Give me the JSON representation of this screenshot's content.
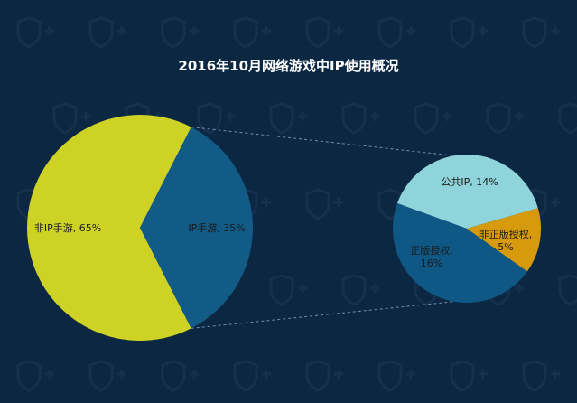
{
  "title": "2016年10月网络游戏中IP使用概况",
  "chart_data": [
    {
      "type": "pie",
      "slices": [
        {
          "label": "非IP手游",
          "value": 65,
          "display": "非IP手游, 65%",
          "color": "#cdd225"
        },
        {
          "label": "IP手游",
          "value": 35,
          "display": "IP手游, 35%",
          "color": "#125b86"
        }
      ]
    },
    {
      "type": "pie",
      "parent_slice": "IP手游",
      "slices": [
        {
          "label": "公共IP",
          "value": 14,
          "display": "公共IP, 14%",
          "color": "#8fd4da"
        },
        {
          "label": "非正版授权",
          "value": 5,
          "display": "非正版授权,\n5%",
          "color": "#d69a0c"
        },
        {
          "label": "正版授权",
          "value": 16,
          "display": "正版授权,\n16%",
          "color": "#0f5886"
        }
      ]
    }
  ],
  "colors": {
    "background": "#0b2742",
    "connector": "#6f8fb0",
    "watermark": "#16314e"
  },
  "watermark_icon": "s-plus-logo-icon"
}
